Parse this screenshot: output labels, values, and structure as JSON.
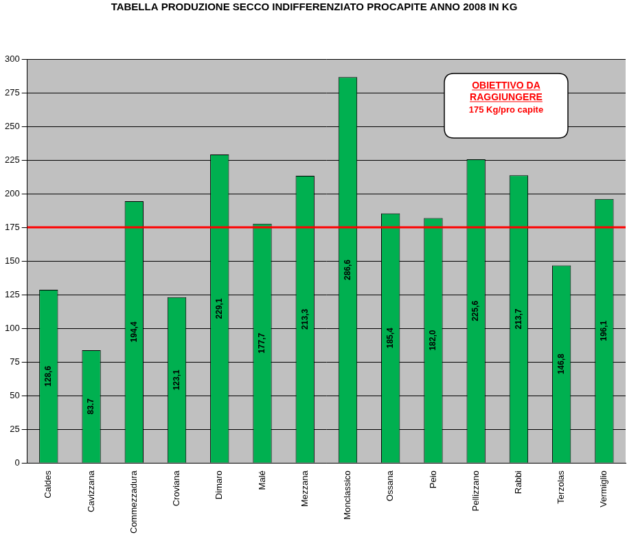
{
  "chart_data": {
    "type": "bar",
    "title": "TABELLA PRODUZIONE SECCO INDIFFERENZIATO PROCAPITE ANNO 2008 IN KG",
    "categories": [
      "Caldes",
      "Cavizzana",
      "Commezzadura",
      "Croviana",
      "Dimaro",
      "Malé",
      "Mezzana",
      "Monclassico",
      "Ossana",
      "Peio",
      "Pellizzano",
      "Rabbi",
      "Terzolas",
      "Vermiglio"
    ],
    "values": [
      128.6,
      83.7,
      194.4,
      123.1,
      229.1,
      177.7,
      213.3,
      286.6,
      185.4,
      182.0,
      225.6,
      213.7,
      146.8,
      196.1
    ],
    "value_labels": [
      "128,6",
      "83.7",
      "194,4",
      "123,1",
      "229,1",
      "177,7",
      "213,3",
      "286,6",
      "185,4",
      "182,0",
      "225,6",
      "213,7",
      "146,8",
      "196,1"
    ],
    "data_labels": true,
    "color": "#00b050",
    "ylim": [
      0,
      300
    ],
    "yticks": [
      0,
      25,
      50,
      75,
      100,
      125,
      150,
      175,
      200,
      225,
      250,
      275,
      300
    ],
    "grid": true,
    "target": 175,
    "annotations": [
      {
        "title": "OBIETTIVO DA RAGGIUNGERE",
        "text": "175 Kg/pro capite"
      }
    ]
  }
}
